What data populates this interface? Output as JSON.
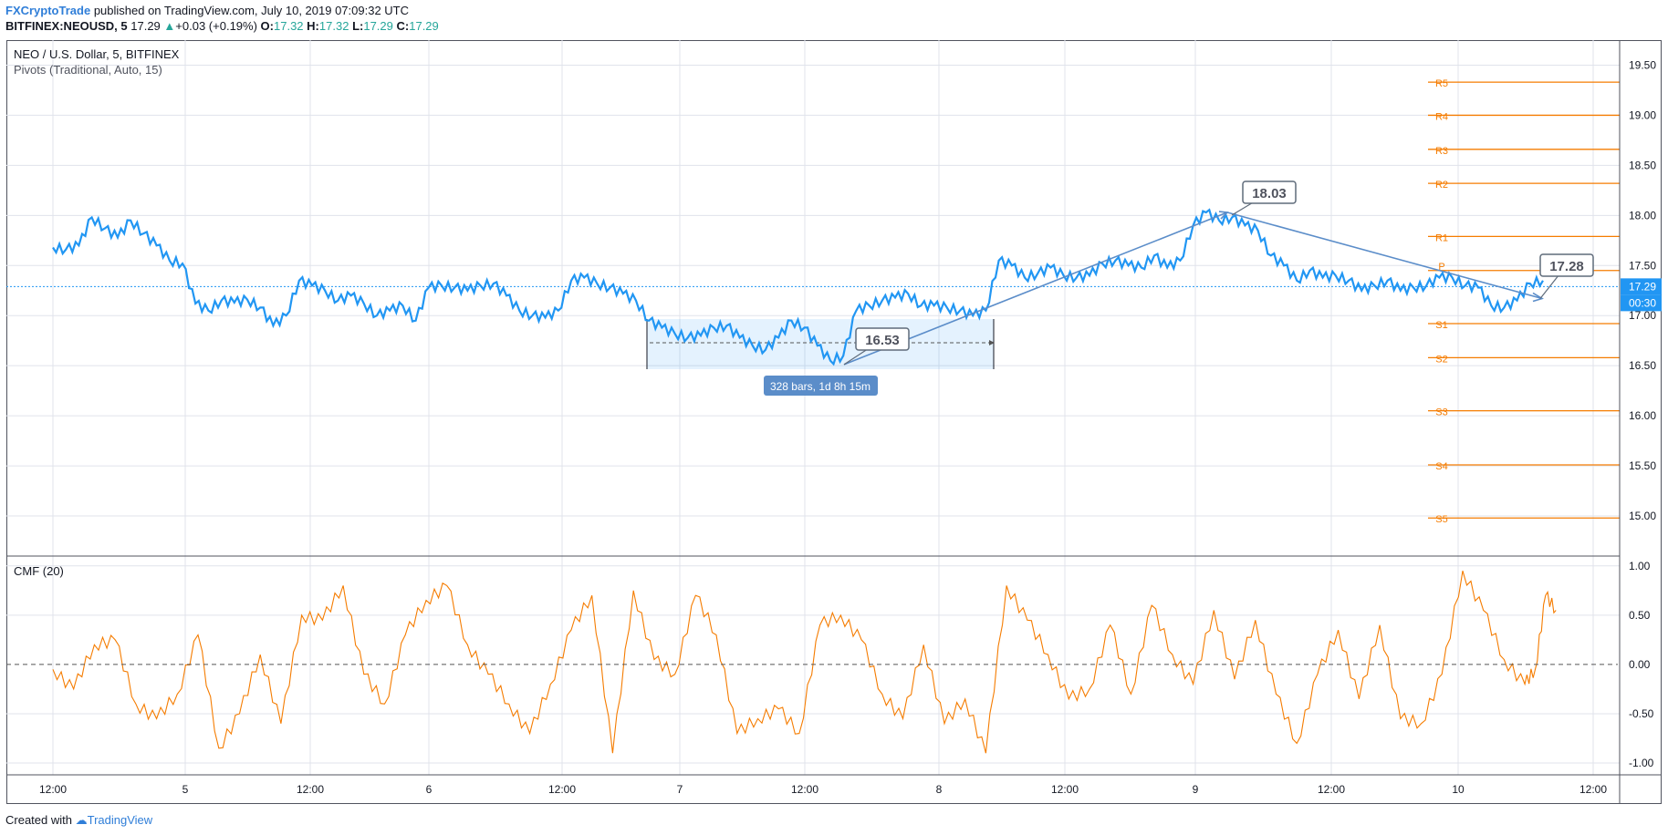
{
  "header": {
    "author": "FXCryptoTrade",
    "published_text": "published on TradingView.com, July 10, 2019 07:09:32 UTC",
    "symbol": "BITFINEX:NEOUSD, 5",
    "last": "17.29",
    "change": "+0.03 (+0.19%)",
    "o_label": "O:",
    "o": "17.32",
    "h_label": "H:",
    "h": "17.32",
    "l_label": "L:",
    "l": "17.29",
    "c_label": "C:",
    "c": "17.29",
    "up_color": "#26a69a"
  },
  "legend": {
    "title": "NEO / U.S. Dollar, 5, BITFINEX",
    "indicator": "Pivots (Traditional, Auto, 15)",
    "cmf": "CMF (20)"
  },
  "footer": {
    "created_with": "Created with",
    "tradingview": "TradingView"
  },
  "chart_data": [
    {
      "type": "line",
      "pane": "price",
      "symbol": "NEOUSD",
      "series": [
        {
          "name": "NEO / U.S. Dollar, 5, BITFINEX",
          "color": "#2196f3"
        }
      ],
      "x_tick_labels": [
        "12:00",
        "5",
        "12:00",
        "6",
        "12:00",
        "7",
        "12:00",
        "8",
        "12:00",
        "9",
        "12:00",
        "10",
        "12:00"
      ],
      "ylim": [
        14.6,
        19.75
      ],
      "y_ticks": [
        15.0,
        15.5,
        16.0,
        16.5,
        17.0,
        17.5,
        18.0,
        18.5,
        19.0,
        19.5
      ],
      "y_tick_labels": [
        "15.00",
        "15.50",
        "16.00",
        "16.50",
        "17.00",
        "17.50",
        "18.00",
        "18.50",
        "19.00",
        "19.50"
      ],
      "last_price_label": "17.29",
      "countdown_label": "00:30",
      "last_price": 17.29,
      "pivot_color": "#f57c00",
      "pivots": [
        {
          "label": "R5",
          "value": 19.33
        },
        {
          "label": "R4",
          "value": 19.0
        },
        {
          "label": "R3",
          "value": 18.66
        },
        {
          "label": "R2",
          "value": 18.32
        },
        {
          "label": "R1",
          "value": 17.79
        },
        {
          "label": "P",
          "value": 17.45
        },
        {
          "label": "S1",
          "value": 16.92
        },
        {
          "label": "S2",
          "value": 16.58
        },
        {
          "label": "S3",
          "value": 16.05
        },
        {
          "label": "S4",
          "value": 15.51
        },
        {
          "label": "S5",
          "value": 14.98
        }
      ],
      "price_path": [
        [
          0.0,
          17.68
        ],
        [
          0.25,
          17.66
        ],
        [
          0.5,
          17.7
        ],
        [
          0.75,
          17.98
        ],
        [
          1.0,
          17.87
        ],
        [
          1.25,
          17.78
        ],
        [
          1.5,
          17.95
        ],
        [
          1.75,
          17.82
        ],
        [
          2.0,
          17.7
        ],
        [
          2.25,
          17.55
        ],
        [
          2.5,
          17.52
        ],
        [
          2.75,
          17.12
        ],
        [
          3.0,
          17.05
        ],
        [
          3.25,
          17.15
        ],
        [
          3.5,
          17.13
        ],
        [
          3.75,
          17.16
        ],
        [
          4.0,
          17.08
        ],
        [
          4.25,
          16.9
        ],
        [
          4.5,
          17.0
        ],
        [
          4.75,
          17.35
        ],
        [
          5.0,
          17.3
        ],
        [
          5.25,
          17.25
        ],
        [
          5.5,
          17.15
        ],
        [
          5.75,
          17.2
        ],
        [
          6.0,
          17.12
        ],
        [
          6.25,
          17.0
        ],
        [
          6.5,
          17.05
        ],
        [
          6.75,
          17.1
        ],
        [
          7.0,
          16.95
        ],
        [
          7.25,
          17.28
        ],
        [
          7.5,
          17.3
        ],
        [
          7.75,
          17.28
        ],
        [
          8.0,
          17.25
        ],
        [
          8.25,
          17.3
        ],
        [
          8.5,
          17.32
        ],
        [
          8.75,
          17.2
        ],
        [
          9.0,
          17.05
        ],
        [
          9.25,
          17.0
        ],
        [
          9.5,
          16.98
        ],
        [
          9.75,
          17.05
        ],
        [
          10.0,
          17.35
        ],
        [
          10.25,
          17.38
        ],
        [
          10.5,
          17.32
        ],
        [
          10.75,
          17.28
        ],
        [
          11.0,
          17.22
        ],
        [
          11.25,
          17.15
        ],
        [
          11.5,
          16.95
        ],
        [
          11.75,
          16.88
        ],
        [
          12.0,
          16.82
        ],
        [
          12.25,
          16.78
        ],
        [
          12.5,
          16.8
        ],
        [
          12.75,
          16.88
        ],
        [
          13.0,
          16.9
        ],
        [
          13.25,
          16.78
        ],
        [
          13.5,
          16.7
        ],
        [
          13.75,
          16.66
        ],
        [
          14.0,
          16.78
        ],
        [
          14.25,
          16.95
        ],
        [
          14.5,
          16.88
        ],
        [
          14.75,
          16.7
        ],
        [
          15.0,
          16.55
        ],
        [
          15.25,
          16.6
        ],
        [
          15.5,
          17.05
        ],
        [
          15.75,
          17.1
        ],
        [
          16.0,
          17.15
        ],
        [
          16.25,
          17.18
        ],
        [
          16.5,
          17.22
        ],
        [
          16.75,
          17.1
        ],
        [
          17.0,
          17.1
        ],
        [
          17.25,
          17.08
        ],
        [
          17.5,
          17.05
        ],
        [
          17.75,
          17.0
        ],
        [
          18.0,
          17.05
        ],
        [
          18.25,
          17.55
        ],
        [
          18.5,
          17.5
        ],
        [
          18.75,
          17.38
        ],
        [
          19.0,
          17.42
        ],
        [
          19.25,
          17.48
        ],
        [
          19.5,
          17.4
        ],
        [
          19.75,
          17.38
        ],
        [
          20.0,
          17.4
        ],
        [
          20.25,
          17.52
        ],
        [
          20.5,
          17.55
        ],
        [
          20.75,
          17.5
        ],
        [
          21.0,
          17.48
        ],
        [
          21.25,
          17.6
        ],
        [
          21.5,
          17.48
        ],
        [
          21.75,
          17.55
        ],
        [
          22.0,
          17.9
        ],
        [
          22.25,
          18.03
        ],
        [
          22.5,
          17.95
        ],
        [
          22.75,
          17.98
        ],
        [
          23.0,
          17.9
        ],
        [
          23.25,
          17.85
        ],
        [
          23.5,
          17.6
        ],
        [
          23.75,
          17.5
        ],
        [
          24.0,
          17.35
        ],
        [
          24.25,
          17.45
        ],
        [
          24.5,
          17.38
        ],
        [
          24.75,
          17.4
        ],
        [
          25.0,
          17.35
        ],
        [
          25.25,
          17.25
        ],
        [
          25.5,
          17.3
        ],
        [
          25.75,
          17.35
        ],
        [
          26.0,
          17.25
        ],
        [
          26.25,
          17.28
        ],
        [
          26.5,
          17.3
        ],
        [
          26.75,
          17.38
        ],
        [
          27.0,
          17.38
        ],
        [
          27.25,
          17.3
        ],
        [
          27.5,
          17.28
        ],
        [
          27.75,
          17.1
        ],
        [
          28.0,
          17.08
        ],
        [
          28.25,
          17.15
        ],
        [
          28.5,
          17.32
        ],
        [
          28.75,
          17.35
        ]
      ],
      "annotations": [
        {
          "type": "callout",
          "text": "16.53",
          "value": 16.53
        },
        {
          "type": "callout",
          "text": "18.03",
          "value": 18.03
        },
        {
          "type": "callout",
          "text": "17.28",
          "value": 17.28
        },
        {
          "type": "date_range",
          "text": "328 bars, 1d 8h 15m"
        }
      ]
    },
    {
      "type": "line",
      "pane": "indicator",
      "series": [
        {
          "name": "CMF (20)",
          "color": "#f57c00"
        }
      ],
      "ylim": [
        -1.12,
        1.1
      ],
      "y_ticks": [
        -1.0,
        -0.5,
        0.0,
        0.5,
        1.0
      ],
      "y_tick_labels": [
        "-1.00",
        "-0.50",
        "0.00",
        "0.50",
        "1.00"
      ],
      "zero_line": true,
      "cmf_path": [
        [
          0.0,
          -0.05
        ],
        [
          0.4,
          -0.25
        ],
        [
          0.8,
          0.2
        ],
        [
          1.2,
          0.25
        ],
        [
          1.6,
          -0.4
        ],
        [
          2.0,
          -0.55
        ],
        [
          2.4,
          -0.3
        ],
        [
          2.8,
          0.3
        ],
        [
          3.2,
          -0.85
        ],
        [
          3.6,
          -0.5
        ],
        [
          4.0,
          0.1
        ],
        [
          4.4,
          -0.6
        ],
        [
          4.8,
          0.5
        ],
        [
          5.2,
          0.45
        ],
        [
          5.6,
          0.8
        ],
        [
          6.0,
          -0.1
        ],
        [
          6.4,
          -0.4
        ],
        [
          6.8,
          0.3
        ],
        [
          7.2,
          0.65
        ],
        [
          7.6,
          0.8
        ],
        [
          8.0,
          0.2
        ],
        [
          8.4,
          -0.1
        ],
        [
          8.8,
          -0.4
        ],
        [
          9.2,
          -0.7
        ],
        [
          9.6,
          -0.2
        ],
        [
          10.0,
          0.35
        ],
        [
          10.4,
          0.7
        ],
        [
          10.8,
          -0.9
        ],
        [
          11.2,
          0.75
        ],
        [
          11.6,
          0.05
        ],
        [
          12.0,
          -0.1
        ],
        [
          12.4,
          0.7
        ],
        [
          12.8,
          0.3
        ],
        [
          13.2,
          -0.7
        ],
        [
          13.6,
          -0.55
        ],
        [
          14.0,
          -0.45
        ],
        [
          14.4,
          -0.7
        ],
        [
          14.8,
          0.4
        ],
        [
          15.2,
          0.5
        ],
        [
          15.6,
          0.25
        ],
        [
          16.0,
          -0.3
        ],
        [
          16.4,
          -0.55
        ],
        [
          16.8,
          0.2
        ],
        [
          17.2,
          -0.6
        ],
        [
          17.6,
          -0.35
        ],
        [
          18.0,
          -0.9
        ],
        [
          18.4,
          0.8
        ],
        [
          18.8,
          0.45
        ],
        [
          19.2,
          0.1
        ],
        [
          19.6,
          -0.35
        ],
        [
          20.0,
          -0.25
        ],
        [
          20.4,
          0.4
        ],
        [
          20.8,
          -0.3
        ],
        [
          21.2,
          0.6
        ],
        [
          21.6,
          0.1
        ],
        [
          22.0,
          -0.2
        ],
        [
          22.4,
          0.55
        ],
        [
          22.8,
          -0.15
        ],
        [
          23.2,
          0.45
        ],
        [
          23.6,
          -0.3
        ],
        [
          24.0,
          -0.8
        ],
        [
          24.4,
          -0.1
        ],
        [
          24.8,
          0.35
        ],
        [
          25.2,
          -0.35
        ],
        [
          25.6,
          0.4
        ],
        [
          26.0,
          -0.55
        ],
        [
          26.4,
          -0.6
        ],
        [
          26.8,
          -0.1
        ],
        [
          27.2,
          0.95
        ],
        [
          27.6,
          0.55
        ],
        [
          28.0,
          0.05
        ],
        [
          28.4,
          -0.2
        ],
        [
          28.6,
          -0.05
        ],
        [
          28.8,
          0.7
        ],
        [
          29.0,
          0.55
        ]
      ]
    }
  ]
}
